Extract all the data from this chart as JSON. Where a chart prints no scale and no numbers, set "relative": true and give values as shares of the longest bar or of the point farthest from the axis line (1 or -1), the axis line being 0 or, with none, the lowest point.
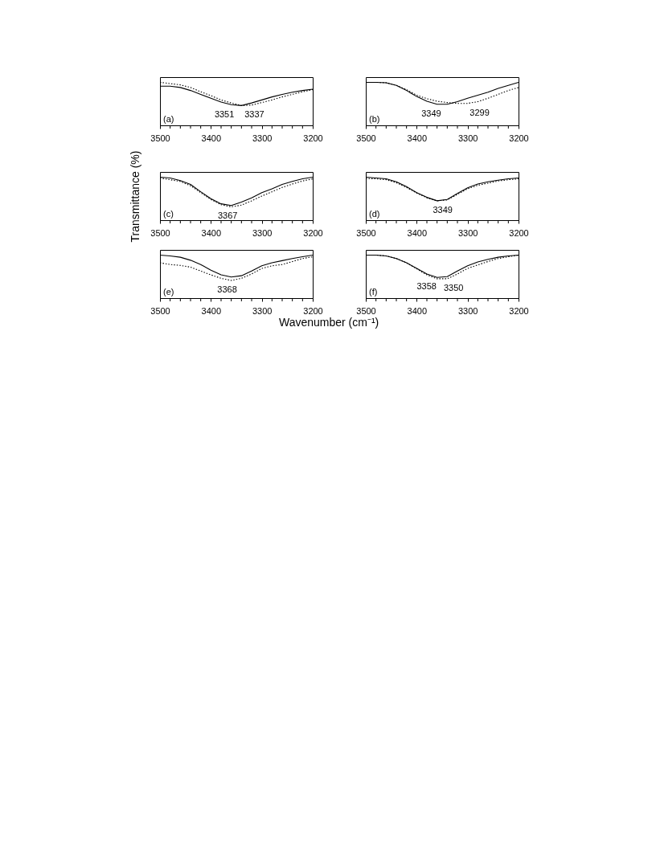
{
  "chart_data": [
    {
      "type": "line",
      "relative": true,
      "x": [
        3500,
        3480,
        3460,
        3440,
        3420,
        3400,
        3380,
        3360,
        3340,
        3320,
        3300,
        3280,
        3260,
        3240,
        3220,
        3200
      ],
      "xlim": [
        3500,
        3200
      ],
      "xticks": [
        3500,
        {
          "value": 3480,
          "label": null
        },
        {
          "value": 3460,
          "label": null
        },
        {
          "value": 3440,
          "label": null
        },
        {
          "value": 3420,
          "label": null
        },
        3400,
        {
          "value": 3380,
          "label": null
        },
        {
          "value": 3360,
          "label": null
        },
        {
          "value": 3340,
          "label": null
        },
        {
          "value": 3320,
          "label": null
        },
        3300,
        {
          "value": 3280,
          "label": null
        },
        {
          "value": 3260,
          "label": null
        },
        {
          "value": 3240,
          "label": null
        },
        {
          "value": 3220,
          "label": null
        },
        3200
      ],
      "marker": "none",
      "grid": false,
      "series": [
        {
          "color": "#000000",
          "line_style": "solid",
          "values": [
            0.91,
            0.91,
            0.88,
            0.81,
            0.72,
            0.63,
            0.54,
            0.48,
            0.46,
            0.52,
            0.59,
            0.66,
            0.72,
            0.77,
            0.81,
            0.84
          ]
        },
        {
          "color": "#000000",
          "line_style": "dotted",
          "values": [
            1,
            0.97,
            0.94,
            0.88,
            0.78,
            0.69,
            0.59,
            0.52,
            0.46,
            0.47,
            0.53,
            0.59,
            0.66,
            0.72,
            0.78,
            0.83
          ]
        }
      ],
      "annotations": [
        "(a)",
        {
          "text": "3351",
          "x": 3351,
          "y": 0.46
        },
        {
          "text": "3337",
          "x": 3337,
          "y": 0.46
        }
      ]
    },
    {
      "type": "line",
      "relative": true,
      "x": [
        3500,
        3480,
        3460,
        3440,
        3420,
        3400,
        3380,
        3360,
        3340,
        3320,
        3300,
        3280,
        3260,
        3240,
        3220,
        3200
      ],
      "xlim": [
        3500,
        3200
      ],
      "xticks": [
        3500,
        {
          "value": 3480,
          "label": null
        },
        {
          "value": 3460,
          "label": null
        },
        {
          "value": 3440,
          "label": null
        },
        {
          "value": 3420,
          "label": null
        },
        3400,
        {
          "value": 3380,
          "label": null
        },
        {
          "value": 3360,
          "label": null
        },
        {
          "value": 3340,
          "label": null
        },
        {
          "value": 3320,
          "label": null
        },
        3300,
        {
          "value": 3280,
          "label": null
        },
        {
          "value": 3260,
          "label": null
        },
        {
          "value": 3240,
          "label": null
        },
        {
          "value": 3220,
          "label": null
        },
        3200
      ],
      "marker": "none",
      "grid": false,
      "series": [
        {
          "color": "#000000",
          "line_style": "solid",
          "values": [
            1,
            1,
            0.99,
            0.93,
            0.81,
            0.67,
            0.56,
            0.49,
            0.49,
            0.55,
            0.63,
            0.7,
            0.77,
            0.86,
            0.93,
            1
          ]
        },
        {
          "color": "#000000",
          "line_style": "dotted",
          "values": [
            1,
            1,
            0.99,
            0.93,
            0.83,
            0.7,
            0.62,
            0.56,
            0.53,
            0.51,
            0.51,
            0.55,
            0.63,
            0.72,
            0.81,
            0.88
          ]
        }
      ],
      "annotations": [
        "(b)",
        {
          "text": "3349",
          "x": 3349,
          "y": 0.49
        },
        {
          "text": "3299",
          "x": 3299,
          "y": 0.51
        }
      ]
    },
    {
      "type": "line",
      "relative": true,
      "x": [
        3500,
        3480,
        3460,
        3440,
        3420,
        3400,
        3380,
        3360,
        3340,
        3320,
        3300,
        3280,
        3260,
        3240,
        3220,
        3200
      ],
      "xlim": [
        3500,
        3200
      ],
      "xticks": [
        3500,
        {
          "value": 3480,
          "label": null
        },
        {
          "value": 3460,
          "label": null
        },
        {
          "value": 3440,
          "label": null
        },
        {
          "value": 3420,
          "label": null
        },
        3400,
        {
          "value": 3380,
          "label": null
        },
        {
          "value": 3360,
          "label": null
        },
        {
          "value": 3340,
          "label": null
        },
        {
          "value": 3320,
          "label": null
        },
        3300,
        {
          "value": 3280,
          "label": null
        },
        {
          "value": 3260,
          "label": null
        },
        {
          "value": 3240,
          "label": null
        },
        {
          "value": 3220,
          "label": null
        },
        3200
      ],
      "marker": "none",
      "grid": false,
      "ylabel": "Transmittance (%)",
      "series": [
        {
          "color": "#000000",
          "line_style": "solid",
          "values": [
            1,
            0.98,
            0.92,
            0.83,
            0.66,
            0.5,
            0.38,
            0.34,
            0.42,
            0.52,
            0.64,
            0.73,
            0.83,
            0.9,
            0.96,
            1
          ]
        },
        {
          "color": "#000000",
          "line_style": "dotted",
          "values": [
            0.98,
            0.94,
            0.9,
            0.8,
            0.64,
            0.48,
            0.36,
            0.31,
            0.35,
            0.45,
            0.56,
            0.66,
            0.76,
            0.84,
            0.91,
            0.96
          ]
        }
      ],
      "annotations": [
        "(c)",
        {
          "text": "3367",
          "x": 3367,
          "y": 0.31
        }
      ]
    },
    {
      "type": "line",
      "relative": true,
      "x": [
        3500,
        3480,
        3460,
        3440,
        3420,
        3400,
        3380,
        3360,
        3340,
        3320,
        3300,
        3280,
        3260,
        3240,
        3220,
        3200
      ],
      "xlim": [
        3500,
        3200
      ],
      "xticks": [
        3500,
        {
          "value": 3480,
          "label": null
        },
        {
          "value": 3460,
          "label": null
        },
        {
          "value": 3440,
          "label": null
        },
        {
          "value": 3420,
          "label": null
        },
        3400,
        {
          "value": 3380,
          "label": null
        },
        {
          "value": 3360,
          "label": null
        },
        {
          "value": 3340,
          "label": null
        },
        {
          "value": 3320,
          "label": null
        },
        3300,
        {
          "value": 3280,
          "label": null
        },
        {
          "value": 3260,
          "label": null
        },
        {
          "value": 3240,
          "label": null
        },
        {
          "value": 3220,
          "label": null
        },
        3200
      ],
      "marker": "none",
      "grid": false,
      "series": [
        {
          "color": "#000000",
          "line_style": "solid",
          "values": [
            1,
            0.98,
            0.96,
            0.89,
            0.78,
            0.64,
            0.53,
            0.45,
            0.48,
            0.62,
            0.75,
            0.84,
            0.89,
            0.93,
            0.96,
            0.98
          ]
        },
        {
          "color": "#000000",
          "line_style": "dotted",
          "values": [
            0.97,
            0.96,
            0.94,
            0.87,
            0.76,
            0.63,
            0.52,
            0.45,
            0.47,
            0.6,
            0.73,
            0.81,
            0.86,
            0.91,
            0.94,
            0.96
          ]
        }
      ],
      "annotations": [
        "(d)",
        {
          "text": "3349",
          "x": 3349,
          "y": 0.45
        }
      ]
    },
    {
      "type": "line",
      "relative": true,
      "x": [
        3500,
        3480,
        3460,
        3440,
        3420,
        3400,
        3380,
        3360,
        3340,
        3320,
        3300,
        3280,
        3260,
        3240,
        3220,
        3200
      ],
      "xlim": [
        3500,
        3200
      ],
      "xticks": [
        3500,
        {
          "value": 3480,
          "label": null
        },
        {
          "value": 3460,
          "label": null
        },
        {
          "value": 3440,
          "label": null
        },
        {
          "value": 3420,
          "label": null
        },
        3400,
        {
          "value": 3380,
          "label": null
        },
        {
          "value": 3360,
          "label": null
        },
        {
          "value": 3340,
          "label": null
        },
        {
          "value": 3320,
          "label": null
        },
        3300,
        {
          "value": 3280,
          "label": null
        },
        {
          "value": 3260,
          "label": null
        },
        {
          "value": 3240,
          "label": null
        },
        {
          "value": 3220,
          "label": null
        },
        3200
      ],
      "marker": "none",
      "grid": false,
      "xlabel": "Wavenumber (cm⁻¹)",
      "series": [
        {
          "color": "#000000",
          "line_style": "solid",
          "values": [
            1,
            0.98,
            0.95,
            0.88,
            0.78,
            0.65,
            0.54,
            0.49,
            0.52,
            0.63,
            0.75,
            0.82,
            0.87,
            0.92,
            0.96,
            1
          ]
        },
        {
          "color": "#000000",
          "line_style": "dotted",
          "values": [
            0.82,
            0.78,
            0.76,
            0.72,
            0.63,
            0.54,
            0.46,
            0.41,
            0.46,
            0.56,
            0.69,
            0.75,
            0.78,
            0.85,
            0.92,
            0.96
          ]
        }
      ],
      "annotations": [
        "(e)",
        {
          "text": "3368",
          "x": 3368,
          "y": 0.41
        }
      ]
    },
    {
      "type": "line",
      "relative": true,
      "x": [
        3500,
        3480,
        3460,
        3440,
        3420,
        3400,
        3380,
        3360,
        3340,
        3320,
        3300,
        3280,
        3260,
        3240,
        3220,
        3200
      ],
      "xlim": [
        3500,
        3200
      ],
      "xticks": [
        3500,
        {
          "value": 3480,
          "label": null
        },
        {
          "value": 3460,
          "label": null
        },
        {
          "value": 3440,
          "label": null
        },
        {
          "value": 3420,
          "label": null
        },
        3400,
        {
          "value": 3380,
          "label": null
        },
        {
          "value": 3360,
          "label": null
        },
        {
          "value": 3340,
          "label": null
        },
        {
          "value": 3320,
          "label": null
        },
        3300,
        {
          "value": 3280,
          "label": null
        },
        {
          "value": 3260,
          "label": null
        },
        {
          "value": 3240,
          "label": null
        },
        {
          "value": 3220,
          "label": null
        },
        3200
      ],
      "marker": "none",
      "grid": false,
      "series": [
        {
          "color": "#000000",
          "line_style": "solid",
          "values": [
            1,
            1,
            0.98,
            0.92,
            0.82,
            0.69,
            0.56,
            0.48,
            0.5,
            0.63,
            0.75,
            0.84,
            0.9,
            0.95,
            0.98,
            1
          ]
        },
        {
          "color": "#000000",
          "line_style": "dotted",
          "values": [
            1,
            1,
            0.98,
            0.92,
            0.82,
            0.68,
            0.54,
            0.45,
            0.45,
            0.56,
            0.69,
            0.77,
            0.85,
            0.92,
            0.96,
            1
          ]
        }
      ],
      "annotations": [
        "(f)",
        {
          "text": "3358",
          "x": 3358,
          "y": 0.48
        },
        {
          "text": "3350",
          "x": 3350,
          "y": 0.45
        }
      ]
    }
  ]
}
